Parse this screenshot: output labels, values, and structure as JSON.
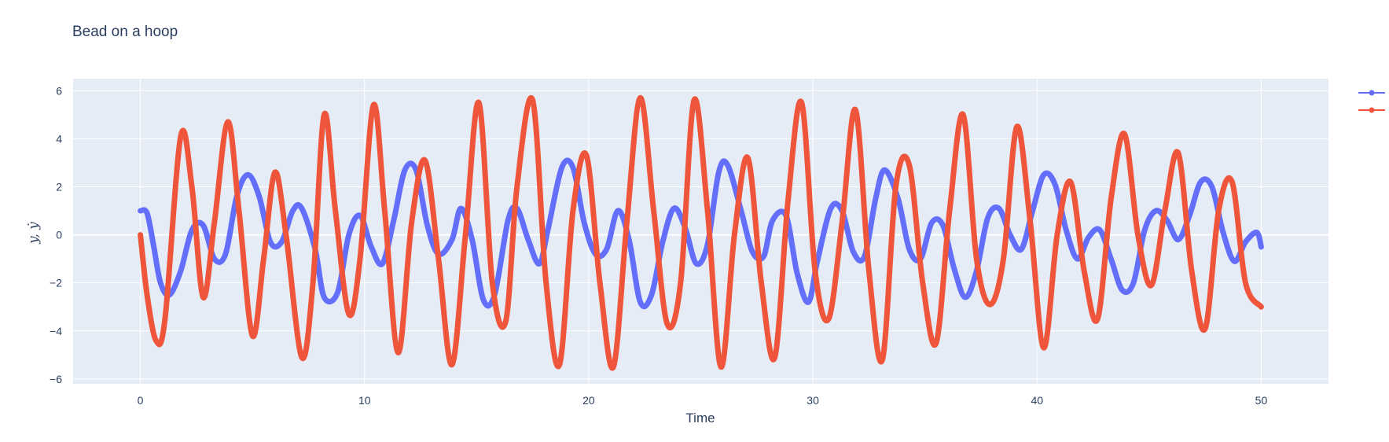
{
  "chart_data": {
    "type": "line",
    "title": "Bead on a hoop",
    "xlabel": "Time",
    "ylabel": "y, ẏ",
    "xlim": [
      -3,
      53
    ],
    "ylim": [
      -6.2,
      6.5
    ],
    "x_ticks": [
      0,
      10,
      20,
      30,
      40,
      50
    ],
    "y_ticks": [
      -6,
      -4,
      -2,
      0,
      2,
      4,
      6
    ],
    "grid": true,
    "legend_position": "right",
    "colors": {
      "plot_bg": "#e5ecf6",
      "grid": "#ffffff",
      "text": "#2a3f5f"
    },
    "series": [
      {
        "color": "#636efa",
        "x": [
          0,
          0.3,
          0.6,
          0.9,
          1.3,
          1.8,
          2.3,
          2.8,
          3.3,
          3.8,
          4.3,
          4.8,
          5.3,
          5.8,
          6.3,
          6.8,
          7.2,
          7.8,
          8.2,
          8.8,
          9.3,
          9.8,
          10.3,
          10.8,
          11.3,
          11.8,
          12.3,
          12.8,
          13.3,
          13.9,
          14.3,
          14.8,
          15.3,
          15.8,
          16.4,
          16.8,
          17.3,
          17.8,
          18.2,
          18.8,
          19.3,
          19.8,
          20.3,
          20.8,
          21.3,
          21.8,
          22.3,
          22.8,
          23.3,
          23.8,
          24.3,
          24.8,
          25.3,
          25.8,
          26.2,
          26.8,
          27.3,
          27.8,
          28.2,
          28.8,
          29.3,
          29.8,
          30.2,
          30.8,
          31.3,
          31.8,
          32.3,
          32.8,
          33.2,
          33.8,
          34.3,
          34.8,
          35.3,
          35.8,
          36.3,
          36.8,
          37.3,
          37.8,
          38.3,
          38.8,
          39.3,
          39.8,
          40.3,
          40.8,
          41.3,
          41.8,
          42.3,
          42.8,
          43.3,
          43.8,
          44.3,
          44.8,
          45.3,
          45.8,
          46.3,
          46.8,
          47.3,
          47.8,
          48.3,
          48.8,
          49.3,
          49.8,
          50
        ],
        "values": [
          1.0,
          0.9,
          -0.5,
          -2.0,
          -2.5,
          -1.5,
          0.2,
          0.4,
          -1.0,
          -0.8,
          1.6,
          2.5,
          1.6,
          -0.3,
          -0.3,
          1.0,
          1.1,
          -0.6,
          -2.6,
          -2.4,
          0.0,
          0.8,
          -0.5,
          -1.2,
          0.6,
          2.7,
          2.7,
          0.4,
          -0.8,
          -0.2,
          1.1,
          -0.2,
          -2.7,
          -2.5,
          0.6,
          1.1,
          -0.2,
          -1.2,
          0.3,
          2.8,
          2.8,
          0.5,
          -0.8,
          -0.6,
          1.0,
          -0.2,
          -2.8,
          -2.5,
          -0.3,
          1.1,
          0.3,
          -1.2,
          -0.4,
          2.6,
          2.9,
          1.0,
          -0.7,
          -0.9,
          0.6,
          0.8,
          -1.6,
          -2.8,
          -1.1,
          1.1,
          1.0,
          -0.7,
          -0.9,
          1.5,
          2.7,
          1.5,
          -0.6,
          -1.0,
          0.5,
          0.4,
          -1.4,
          -2.6,
          -1.5,
          0.7,
          1.1,
          0.0,
          -0.6,
          1.0,
          2.5,
          2.1,
          0.2,
          -1.0,
          -0.1,
          0.2,
          -1.0,
          -2.3,
          -2.0,
          0.2,
          1.0,
          0.6,
          -0.2,
          0.8,
          2.2,
          2.0,
          0.1,
          -1.1,
          -0.3,
          0.1,
          -0.5
        ]
      },
      {
        "color": "#ef553b",
        "x": [
          0,
          0.3,
          0.7,
          1.1,
          1.8,
          2.3,
          2.8,
          3.3,
          3.9,
          4.4,
          5.0,
          5.5,
          6.0,
          6.5,
          7.2,
          7.7,
          8.2,
          8.7,
          9.3,
          9.8,
          10.4,
          10.9,
          11.5,
          12.1,
          12.7,
          13.3,
          13.9,
          14.5,
          15.1,
          15.7,
          16.3,
          16.8,
          17.5,
          18.1,
          18.7,
          19.3,
          19.9,
          20.5,
          21.1,
          21.7,
          22.3,
          22.9,
          23.5,
          24.1,
          24.7,
          25.3,
          25.9,
          26.5,
          27.1,
          27.7,
          28.3,
          28.9,
          29.5,
          30.1,
          30.7,
          31.3,
          31.9,
          32.5,
          33.1,
          33.7,
          34.3,
          34.9,
          35.5,
          36.1,
          36.7,
          37.3,
          37.9,
          38.5,
          39.1,
          39.7,
          40.3,
          40.9,
          41.5,
          42.1,
          42.7,
          43.3,
          43.9,
          44.5,
          45.1,
          45.7,
          46.3,
          46.9,
          47.5,
          48.1,
          48.7,
          49.3,
          50
        ],
        "values": [
          0.0,
          -2.5,
          -4.4,
          -3.5,
          4.1,
          2.0,
          -2.6,
          0.5,
          4.7,
          1.0,
          -4.2,
          -1.0,
          2.6,
          0.0,
          -5.1,
          -2.0,
          5.0,
          1.0,
          -3.3,
          -1.0,
          5.4,
          1.0,
          -4.9,
          0.5,
          3.1,
          -1.0,
          -5.4,
          0.0,
          5.5,
          -2.0,
          -3.6,
          2.0,
          5.6,
          -2.0,
          -5.4,
          1.0,
          3.3,
          -2.0,
          -5.5,
          0.5,
          5.7,
          1.0,
          -3.7,
          -2.0,
          5.6,
          1.0,
          -5.5,
          0.0,
          3.2,
          -2.0,
          -5.1,
          1.5,
          5.5,
          -1.5,
          -3.5,
          0.5,
          5.2,
          -1.5,
          -5.2,
          2.0,
          2.9,
          -2.0,
          -4.5,
          1.0,
          5.0,
          -1.0,
          -2.9,
          -1.0,
          4.5,
          0.5,
          -4.7,
          0.0,
          2.2,
          -1.5,
          -3.5,
          1.5,
          4.2,
          0.0,
          -2.1,
          1.0,
          3.4,
          -1.5,
          -3.9,
          1.0,
          2.2,
          -2.0,
          -3.0
        ]
      }
    ]
  }
}
